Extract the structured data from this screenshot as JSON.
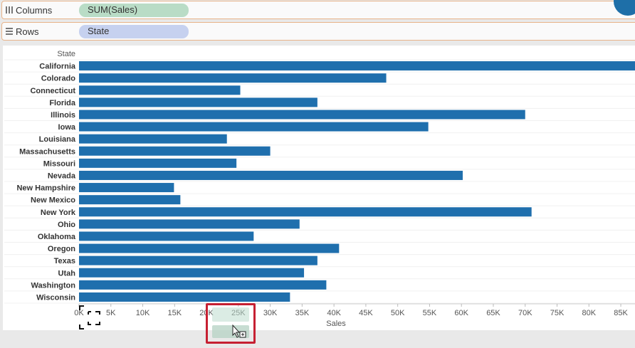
{
  "shelves": {
    "columns": {
      "label": "Columns",
      "pill": "SUM(Sales)",
      "icon": "columns-grid-icon"
    },
    "rows": {
      "label": "Rows",
      "pill": "State",
      "icon": "rows-list-icon"
    }
  },
  "chart_data": {
    "type": "bar",
    "orientation": "horizontal",
    "row_header": "State",
    "xlabel": "Sales",
    "categories": [
      "California",
      "Colorado",
      "Connecticut",
      "Florida",
      "Illinois",
      "Iowa",
      "Louisiana",
      "Massachusetts",
      "Missouri",
      "Nevada",
      "New Hampshire",
      "New Mexico",
      "New York",
      "Ohio",
      "Oklahoma",
      "Oregon",
      "Texas",
      "Utah",
      "Washington",
      "Wisconsin"
    ],
    "values": [
      88000,
      48200,
      25300,
      37400,
      70000,
      54800,
      23200,
      30000,
      24700,
      60200,
      14900,
      15900,
      71000,
      34600,
      27400,
      40800,
      37400,
      35300,
      38800,
      33100
    ],
    "xlim": [
      0,
      86000
    ],
    "xticks": [
      0,
      5000,
      10000,
      15000,
      20000,
      25000,
      30000,
      35000,
      40000,
      45000,
      50000,
      55000,
      60000,
      65000,
      70000,
      75000,
      80000,
      85000
    ],
    "xtick_labels": [
      "0K",
      "5K",
      "10K",
      "15K",
      "20K",
      "25K",
      "30K",
      "35K",
      "40K",
      "45K",
      "50K",
      "55K",
      "60K",
      "65K",
      "70K",
      "75K",
      "80K",
      "85K"
    ],
    "bar_color": "#1f6fad",
    "grid": false
  },
  "overlay": {
    "drop_zone_color": "#c62032",
    "cursor_icon": "drag-copy-cursor-icon",
    "selection_icon": "selection-bracket-icon"
  }
}
